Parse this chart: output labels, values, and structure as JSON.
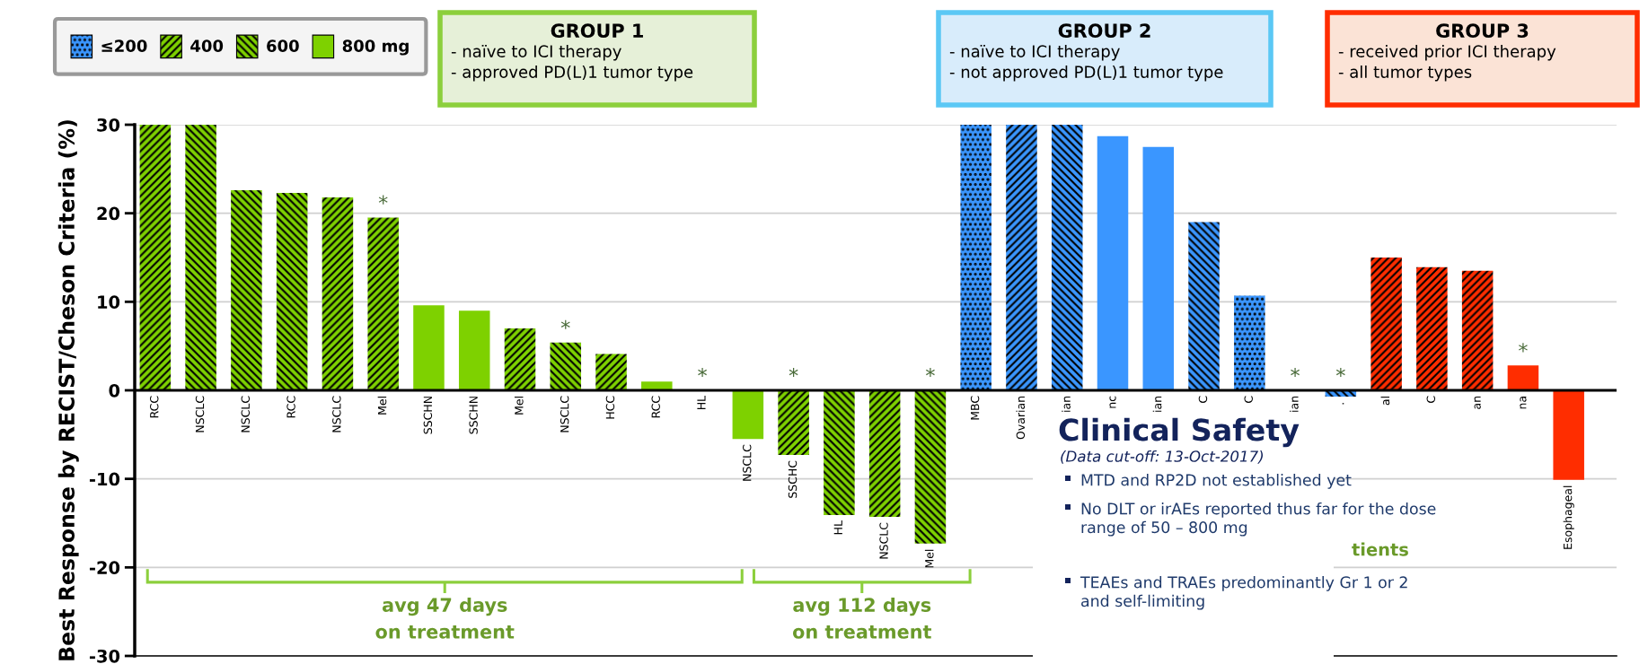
{
  "chart_data": {
    "type": "bar",
    "ylabel": "Best Response by RECIST/Cheson Criteria (%)",
    "categories": [
      "RCC",
      "NSCLC",
      "NSCLC",
      "RCC",
      "NSCLC",
      "Mel",
      "SSCHN",
      "SSCHN",
      "Mel",
      "NSCLC",
      "HCC",
      "RCC",
      "HL",
      "NSCLC",
      "SSCHC",
      "HL",
      "NSCLC",
      "Mel",
      "MBC",
      "Ovarian",
      "ian",
      "nc",
      "ian",
      "C",
      "C",
      "ian",
      ".",
      "al",
      "C",
      "an",
      "na",
      "Esophageal"
    ],
    "series": [
      {
        "name": "≤200",
        "values": [
          null,
          null,
          null,
          null,
          null,
          null,
          null,
          null,
          null,
          null,
          null,
          null,
          null,
          null,
          null,
          null,
          null,
          null,
          30,
          null,
          null,
          null,
          null,
          null,
          10.7,
          null,
          null,
          null,
          null,
          null,
          null,
          null
        ],
        "colors": [
          null,
          null,
          null,
          null,
          null,
          null,
          null,
          null,
          null,
          null,
          null,
          null,
          null,
          null,
          null,
          null,
          null,
          null,
          "#3a96ff",
          null,
          null,
          null,
          null,
          null,
          "#3a96ff",
          null,
          null,
          null,
          null,
          null,
          null,
          null
        ],
        "value_labels": [
          null,
          null,
          null,
          null,
          null,
          null,
          null,
          null,
          null,
          null,
          null,
          null,
          null,
          null,
          null,
          null,
          null,
          null,
          null,
          null,
          null,
          null,
          null,
          null,
          null,
          null,
          null,
          null,
          null,
          null,
          null,
          null
        ]
      },
      {
        "name": "400",
        "values": [
          30,
          null,
          null,
          null,
          21.8,
          19.5,
          null,
          null,
          7.0,
          null,
          4.1,
          null,
          null,
          null,
          -7.3,
          null,
          -14.3,
          null,
          null,
          30,
          null,
          null,
          null,
          null,
          null,
          null,
          null,
          15.0,
          13.9,
          13.5,
          null,
          null
        ],
        "colors": [
          "#7ed100",
          null,
          null,
          null,
          "#7ed100",
          "#7ed100",
          null,
          null,
          "#7ed100",
          null,
          "#7ed100",
          null,
          null,
          null,
          "#7ed100",
          null,
          "#7ed100",
          null,
          null,
          "#3a96ff",
          null,
          null,
          null,
          null,
          null,
          null,
          null,
          "#ff2d00",
          "#ff2d00",
          "#ff2d00",
          null,
          null
        ],
        "value_labels": [
          null,
          null,
          null,
          null,
          null,
          "*",
          null,
          null,
          null,
          null,
          null,
          null,
          null,
          null,
          "*",
          null,
          null,
          null,
          null,
          null,
          null,
          null,
          null,
          null,
          null,
          null,
          null,
          null,
          null,
          null,
          null,
          null
        ]
      },
      {
        "name": "600",
        "values": [
          null,
          30,
          22.6,
          22.3,
          null,
          null,
          null,
          null,
          null,
          5.4,
          null,
          null,
          null,
          null,
          null,
          -14.1,
          null,
          -17.3,
          null,
          null,
          30,
          null,
          null,
          19.0,
          null,
          null,
          -0.7,
          null,
          null,
          null,
          null,
          null
        ],
        "colors": [
          null,
          "#7ed100",
          "#7ed100",
          "#7ed100",
          null,
          null,
          null,
          null,
          null,
          "#7ed100",
          null,
          null,
          null,
          null,
          null,
          "#7ed100",
          null,
          "#7ed100",
          null,
          null,
          "#3a96ff",
          null,
          null,
          "#3a96ff",
          null,
          null,
          "#3a96ff",
          null,
          null,
          null,
          null,
          null
        ],
        "value_labels": [
          null,
          null,
          null,
          null,
          null,
          null,
          null,
          null,
          null,
          "*",
          null,
          null,
          null,
          null,
          null,
          null,
          null,
          "*",
          null,
          null,
          null,
          null,
          null,
          null,
          null,
          null,
          "*",
          null,
          null,
          null,
          null,
          null
        ]
      },
      {
        "name": "800 mg",
        "values": [
          null,
          null,
          null,
          null,
          null,
          null,
          9.6,
          9.0,
          null,
          null,
          null,
          1.0,
          0,
          -5.5,
          null,
          null,
          null,
          null,
          null,
          null,
          null,
          28.7,
          27.5,
          null,
          null,
          0,
          null,
          null,
          null,
          null,
          2.8,
          -10.1
        ],
        "colors": [
          null,
          null,
          null,
          null,
          null,
          null,
          "#7ed100",
          "#7ed100",
          null,
          null,
          null,
          "#7ed100",
          "#7ed100",
          "#7ed100",
          null,
          null,
          null,
          null,
          null,
          null,
          null,
          "#3a96ff",
          "#3a96ff",
          null,
          null,
          "#3a96ff",
          null,
          null,
          null,
          null,
          "#ff2d00",
          "#ff2d00"
        ],
        "value_labels": [
          null,
          null,
          null,
          null,
          null,
          null,
          null,
          null,
          null,
          null,
          null,
          null,
          "*",
          null,
          null,
          null,
          null,
          null,
          null,
          null,
          null,
          null,
          null,
          null,
          null,
          "*",
          null,
          null,
          null,
          null,
          "*",
          null
        ]
      }
    ],
    "ylim": [
      -30,
      30
    ],
    "yticks": [
      -30,
      -20,
      -10,
      0,
      10,
      20,
      30
    ],
    "grid": "y",
    "legend": "top left",
    "annotations": [
      "GROUP 1",
      "- naïve to ICI therapy\n- approved PD(L)1 tumor type",
      "GROUP 2",
      "- naïve to ICI therapy\n- not approved PD(L)1 tumor type",
      "GROUP 3",
      "- received prior ICI therapy\n- all tumor types",
      "avg 47 days\non treatment",
      "avg 112 days\non treatment",
      "Clinical Safety",
      "(Data cut-off: 13-Oct-2017)",
      "MTD and RP2D not established yet",
      "No DLT or irAEs reported thus far for the dose\nrange of 50 – 800 mg",
      "TEAEs and TRAEs predominantly Gr 1 or 2\nand self-limiting",
      "tients"
    ]
  }
}
